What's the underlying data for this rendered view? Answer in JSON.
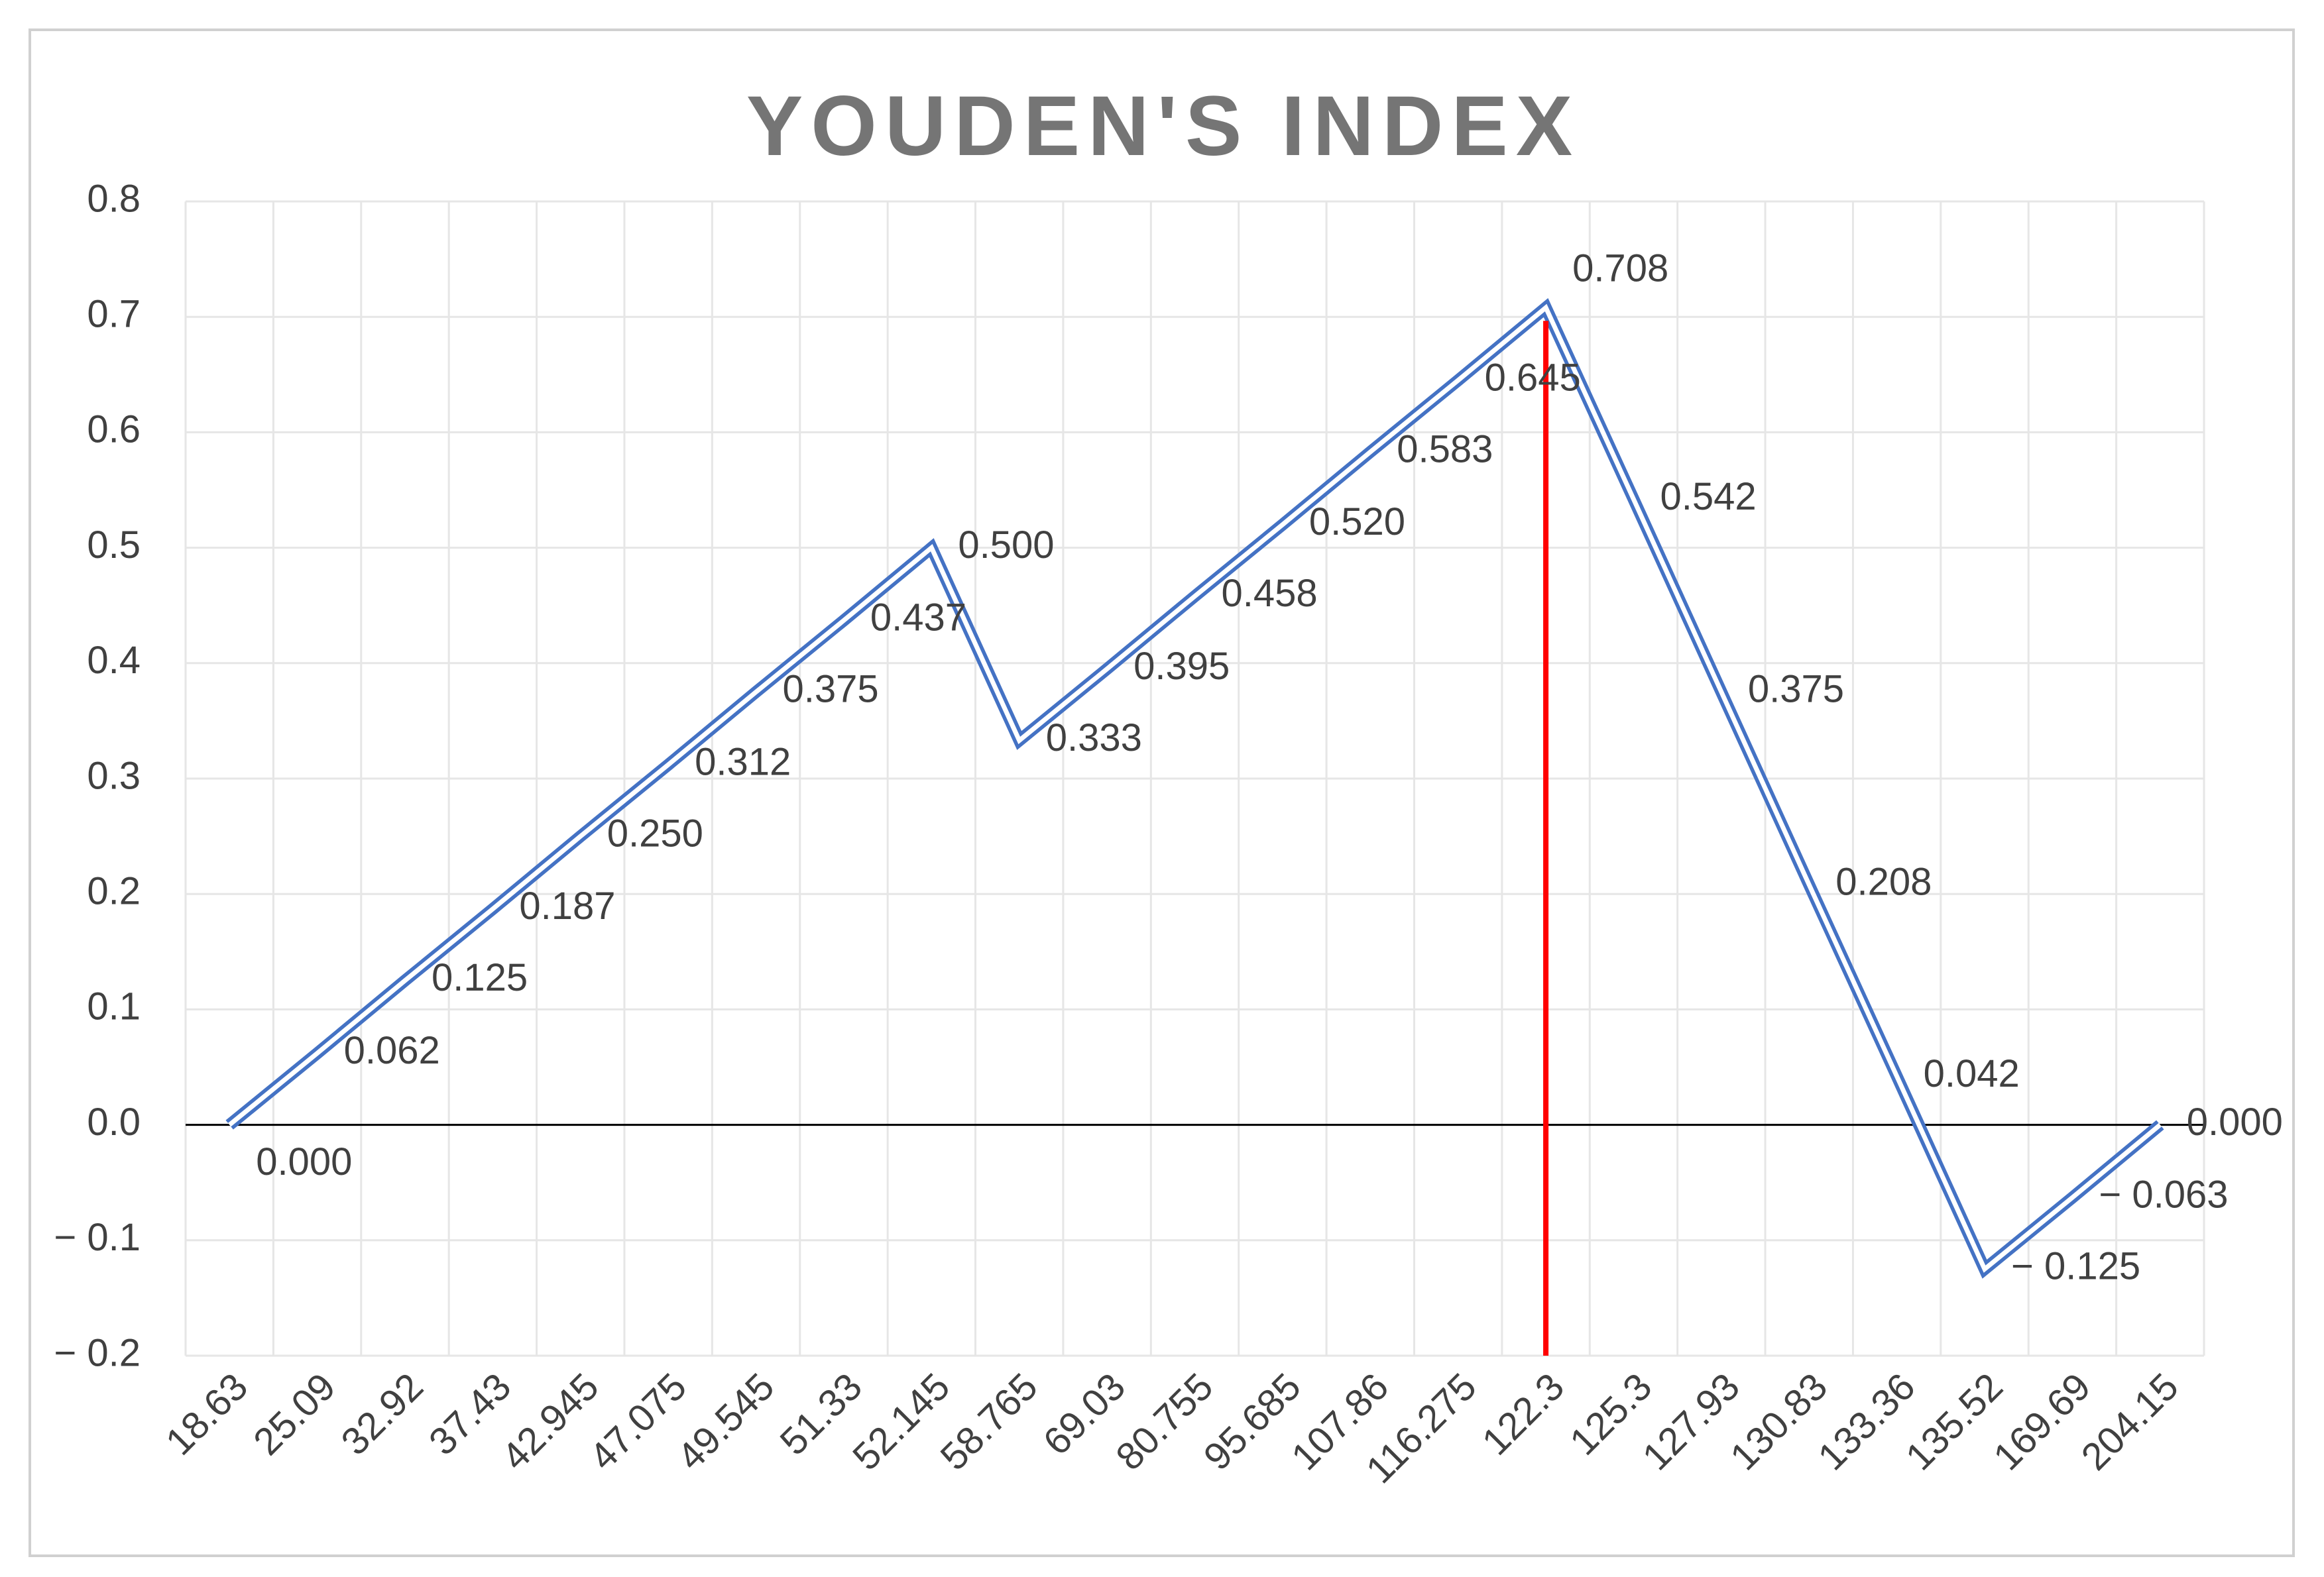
{
  "chart_data": {
    "type": "line",
    "title": "YOUDEN'S INDEX",
    "categories": [
      "18.63",
      "25.09",
      "32.92",
      "37.43",
      "42.945",
      "47.075",
      "49.545",
      "51.33",
      "52.145",
      "58.765",
      "69.03",
      "80.755",
      "95.685",
      "107.86",
      "116.275",
      "122.3",
      "125.3",
      "127.93",
      "130.83",
      "133.36",
      "135.52",
      "169.69",
      "204.15"
    ],
    "series": [
      {
        "color": "#4472c4",
        "values": [
          0,
          0.062,
          0.125,
          0.187,
          0.25,
          0.312,
          0.375,
          0.437,
          0.5,
          0.333,
          0.395,
          0.458,
          0.52,
          0.583,
          0.645,
          0.708,
          0.542,
          0.375,
          0.208,
          0.042,
          -0.125,
          -0.063,
          0
        ],
        "value_labels": [
          "0.000",
          "0.062",
          "0.125",
          "0.187",
          "0.250",
          "0.312",
          "0.375",
          "0.437",
          "0.500",
          "0.333",
          "0.395",
          "0.458",
          "0.520",
          "0.583",
          "0.645",
          "0.708",
          "0.542",
          "0.375",
          "0.208",
          "0.042",
          "− 0.125",
          "− 0.063",
          "0.000"
        ]
      }
    ],
    "ylim": [
      -0.2,
      0.8
    ],
    "yticks": [
      {
        "value": -0.2,
        "label": "− 0.2"
      },
      {
        "value": -0.1,
        "label": "− 0.1"
      },
      {
        "value": 0,
        "label": "0.0"
      },
      0.1,
      0.2,
      0.3,
      0.4,
      0.5,
      0.6,
      0.7,
      0.8
    ],
    "grid": true,
    "marker_line": {
      "category_index": 15,
      "color": "#ff0000"
    }
  }
}
